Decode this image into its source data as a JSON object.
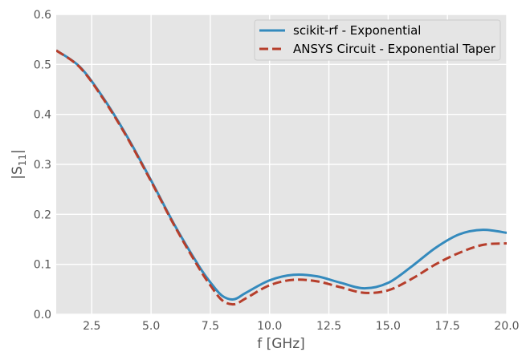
{
  "chart_data": {
    "type": "line",
    "title": "",
    "xlabel": "f [GHz]",
    "ylabel": "|S11|",
    "xlim": [
      1,
      20
    ],
    "ylim": [
      0,
      0.6
    ],
    "xticks": [
      2.5,
      5.0,
      7.5,
      10.0,
      12.5,
      15.0,
      17.5,
      20.0
    ],
    "xtick_labels": [
      "2.5",
      "5.0",
      "7.5",
      "10.0",
      "12.5",
      "15.0",
      "17.5",
      "20.0"
    ],
    "yticks": [
      0.0,
      0.1,
      0.2,
      0.3,
      0.4,
      0.5,
      0.6
    ],
    "ytick_labels": [
      "0.0",
      "0.1",
      "0.2",
      "0.3",
      "0.4",
      "0.5",
      "0.6"
    ],
    "grid": true,
    "legend_position": "top-right",
    "series": [
      {
        "name": "scikit-rf - Exponential",
        "color": "#348abd",
        "style": "solid",
        "x": [
          1,
          2,
          3,
          4,
          5,
          6,
          7,
          7.5,
          8,
          8.5,
          9,
          10,
          11,
          12,
          13,
          14,
          15,
          16,
          17,
          18,
          19,
          20
        ],
        "y": [
          0.528,
          0.495,
          0.432,
          0.355,
          0.268,
          0.178,
          0.098,
          0.064,
          0.037,
          0.03,
          0.043,
          0.068,
          0.079,
          0.076,
          0.063,
          0.052,
          0.063,
          0.096,
          0.133,
          0.16,
          0.169,
          0.163
        ]
      },
      {
        "name": "ANSYS Circuit - Exponential Taper",
        "color": "#b63e2b",
        "style": "dashed",
        "x": [
          1,
          2,
          3,
          4,
          5,
          6,
          7,
          7.5,
          8,
          8.5,
          9,
          10,
          11,
          12,
          13,
          14,
          15,
          16,
          17,
          18,
          19,
          20
        ],
        "y": [
          0.528,
          0.494,
          0.43,
          0.353,
          0.266,
          0.176,
          0.094,
          0.058,
          0.028,
          0.02,
          0.032,
          0.058,
          0.069,
          0.066,
          0.054,
          0.043,
          0.048,
          0.071,
          0.1,
          0.123,
          0.139,
          0.142
        ]
      }
    ]
  }
}
